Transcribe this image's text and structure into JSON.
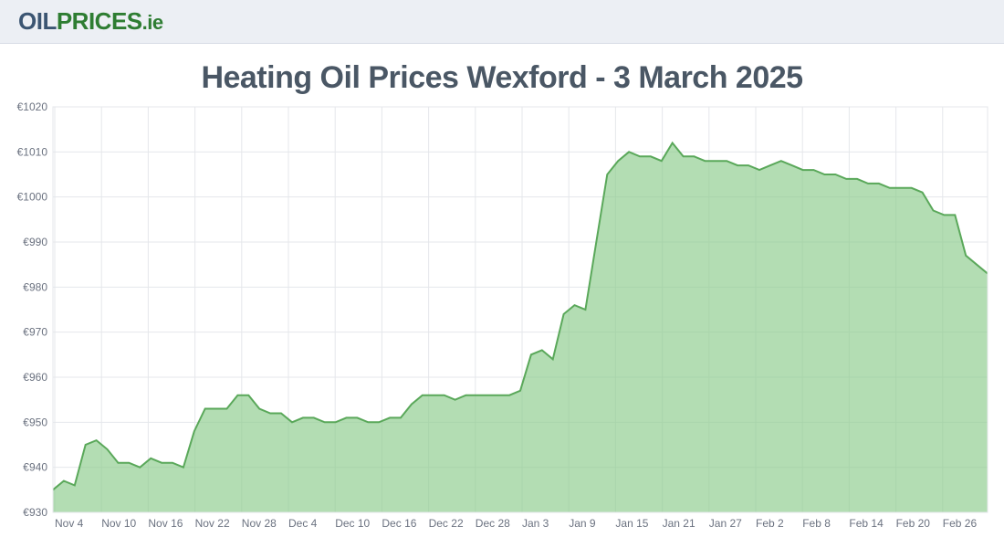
{
  "logo": {
    "part1": "OIL",
    "part2": "PRICES",
    "part3": ".ie"
  },
  "title": "Heating Oil Prices Wexford - 3 March 2025",
  "chart": {
    "type": "area",
    "background_color": "#ffffff",
    "grid_color": "#e5e7eb",
    "axis_text_color": "#6b7280",
    "series_fill_color": "#8bcb8b",
    "series_stroke_color": "#5aa85a",
    "series_fill_opacity": 0.65,
    "line_width": 2,
    "title_fontsize": 34,
    "label_fontsize": 12,
    "ylim": [
      930,
      1020
    ],
    "ytick_step": 10,
    "ytick_prefix": "€",
    "yticks": [
      "€930",
      "€940",
      "€950",
      "€960",
      "€970",
      "€980",
      "€990",
      "€1000",
      "€1010",
      "€1020"
    ],
    "xticks": [
      "Nov 4",
      "Nov 10",
      "Nov 16",
      "Nov 22",
      "Nov 28",
      "Dec 4",
      "Dec 10",
      "Dec 16",
      "Dec 22",
      "Dec 28",
      "Jan 3",
      "Jan 9",
      "Jan 15",
      "Jan 21",
      "Jan 27",
      "Feb 2",
      "Feb 8",
      "Feb 14",
      "Feb 20",
      "Feb 26"
    ],
    "data": [
      {
        "x": 0,
        "y": 935
      },
      {
        "x": 1,
        "y": 937
      },
      {
        "x": 2,
        "y": 936
      },
      {
        "x": 3,
        "y": 945
      },
      {
        "x": 4,
        "y": 946
      },
      {
        "x": 5,
        "y": 944
      },
      {
        "x": 6,
        "y": 941
      },
      {
        "x": 7,
        "y": 941
      },
      {
        "x": 8,
        "y": 940
      },
      {
        "x": 9,
        "y": 942
      },
      {
        "x": 10,
        "y": 941
      },
      {
        "x": 11,
        "y": 941
      },
      {
        "x": 12,
        "y": 940
      },
      {
        "x": 13,
        "y": 948
      },
      {
        "x": 14,
        "y": 953
      },
      {
        "x": 15,
        "y": 953
      },
      {
        "x": 16,
        "y": 953
      },
      {
        "x": 17,
        "y": 956
      },
      {
        "x": 18,
        "y": 956
      },
      {
        "x": 19,
        "y": 953
      },
      {
        "x": 20,
        "y": 952
      },
      {
        "x": 21,
        "y": 952
      },
      {
        "x": 22,
        "y": 950
      },
      {
        "x": 23,
        "y": 951
      },
      {
        "x": 24,
        "y": 951
      },
      {
        "x": 25,
        "y": 950
      },
      {
        "x": 26,
        "y": 950
      },
      {
        "x": 27,
        "y": 951
      },
      {
        "x": 28,
        "y": 951
      },
      {
        "x": 29,
        "y": 950
      },
      {
        "x": 30,
        "y": 950
      },
      {
        "x": 31,
        "y": 951
      },
      {
        "x": 32,
        "y": 951
      },
      {
        "x": 33,
        "y": 954
      },
      {
        "x": 34,
        "y": 956
      },
      {
        "x": 35,
        "y": 956
      },
      {
        "x": 36,
        "y": 956
      },
      {
        "x": 37,
        "y": 955
      },
      {
        "x": 38,
        "y": 956
      },
      {
        "x": 39,
        "y": 956
      },
      {
        "x": 40,
        "y": 956
      },
      {
        "x": 41,
        "y": 956
      },
      {
        "x": 42,
        "y": 956
      },
      {
        "x": 43,
        "y": 957
      },
      {
        "x": 44,
        "y": 965
      },
      {
        "x": 45,
        "y": 966
      },
      {
        "x": 46,
        "y": 964
      },
      {
        "x": 47,
        "y": 974
      },
      {
        "x": 48,
        "y": 976
      },
      {
        "x": 49,
        "y": 975
      },
      {
        "x": 50,
        "y": 990
      },
      {
        "x": 51,
        "y": 1005
      },
      {
        "x": 52,
        "y": 1008
      },
      {
        "x": 53,
        "y": 1010
      },
      {
        "x": 54,
        "y": 1009
      },
      {
        "x": 55,
        "y": 1009
      },
      {
        "x": 56,
        "y": 1008
      },
      {
        "x": 57,
        "y": 1012
      },
      {
        "x": 58,
        "y": 1009
      },
      {
        "x": 59,
        "y": 1009
      },
      {
        "x": 60,
        "y": 1008
      },
      {
        "x": 61,
        "y": 1008
      },
      {
        "x": 62,
        "y": 1008
      },
      {
        "x": 63,
        "y": 1007
      },
      {
        "x": 64,
        "y": 1007
      },
      {
        "x": 65,
        "y": 1006
      },
      {
        "x": 66,
        "y": 1007
      },
      {
        "x": 67,
        "y": 1008
      },
      {
        "x": 68,
        "y": 1007
      },
      {
        "x": 69,
        "y": 1006
      },
      {
        "x": 70,
        "y": 1006
      },
      {
        "x": 71,
        "y": 1005
      },
      {
        "x": 72,
        "y": 1005
      },
      {
        "x": 73,
        "y": 1004
      },
      {
        "x": 74,
        "y": 1004
      },
      {
        "x": 75,
        "y": 1003
      },
      {
        "x": 76,
        "y": 1003
      },
      {
        "x": 77,
        "y": 1002
      },
      {
        "x": 78,
        "y": 1002
      },
      {
        "x": 79,
        "y": 1002
      },
      {
        "x": 80,
        "y": 1001
      },
      {
        "x": 81,
        "y": 997
      },
      {
        "x": 82,
        "y": 996
      },
      {
        "x": 83,
        "y": 996
      },
      {
        "x": 84,
        "y": 987
      },
      {
        "x": 85,
        "y": 985
      },
      {
        "x": 86,
        "y": 983
      }
    ],
    "x_count": 86
  }
}
